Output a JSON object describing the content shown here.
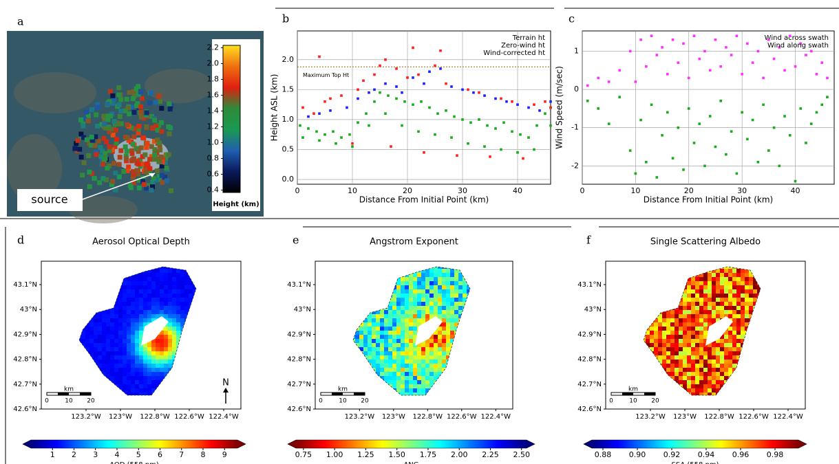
{
  "chart_data": [
    {
      "type": "image",
      "panel_label": "a",
      "annotation": "source",
      "colorbar": {
        "label": "Height (km)",
        "lim": [
          0.37,
          2.23
        ],
        "ticks": [
          0.4,
          0.6,
          0.8,
          {
            "value": 1,
            "label": "1.0"
          },
          1.2,
          1.4,
          1.6,
          1.8,
          {
            "value": 2,
            "label": "2.0"
          },
          2.2
        ],
        "colors": [
          "#000000",
          "#0a1a5c",
          "#1f5fb0",
          "#1a9a50",
          "#2e8b3a",
          "#e02010",
          "#f07010",
          "#ffe020"
        ]
      }
    },
    {
      "type": "scatter",
      "panel_label": "b",
      "xlabel": "Distance From Initial Point (km)",
      "ylabel": "Height ASL (km)",
      "xlim": [
        0,
        46
      ],
      "ylim": [
        -0.08,
        2.48
      ],
      "xticks": [
        0,
        10,
        20,
        30,
        40
      ],
      "yticks": [
        {
          "value": 0,
          "label": "0.0"
        },
        0.5,
        {
          "value": 1,
          "label": "1.0"
        },
        1.5,
        {
          "value": 2,
          "label": "2.0"
        }
      ],
      "grid": true,
      "legend": "upper right",
      "reference_lines": [
        {
          "value": 1.88,
          "label": "Maximum Top Ht",
          "color": "#a06a10"
        }
      ],
      "series": [
        {
          "name": "Terrain ht",
          "color": "#1aaa1a",
          "x": [
            0.5,
            2,
            3.5,
            5,
            6.5,
            8,
            9.5,
            11,
            12.5,
            14,
            15,
            16.5,
            18,
            19.5,
            21,
            22.5,
            24,
            25.5,
            27,
            28.5,
            30,
            31.5,
            33,
            34.5,
            36,
            37.5,
            39,
            40.5,
            42,
            43.5,
            45,
            46,
            1,
            4,
            7,
            10,
            13,
            16,
            19,
            22,
            25,
            28,
            31,
            34,
            37,
            40,
            43,
            46
          ],
          "values": [
            0.9,
            0.85,
            0.8,
            0.75,
            0.8,
            0.7,
            0.75,
            0.95,
            1.1,
            1.3,
            1.45,
            1.4,
            1.35,
            1.3,
            1.25,
            1.3,
            1.2,
            1.1,
            1.15,
            1.05,
            1.0,
            0.95,
            1.0,
            0.9,
            0.85,
            0.95,
            0.8,
            0.75,
            0.7,
            0.9,
            1.1,
            1.2,
            0.7,
            0.65,
            0.6,
            0.55,
            0.9,
            1.1,
            0.9,
            0.8,
            0.75,
            0.7,
            0.6,
            0.55,
            0.5,
            0.45,
            0.5,
            0.9
          ]
        },
        {
          "name": "Zero-wind ht",
          "color": "#ff2020",
          "x": [
            1,
            3,
            4,
            5,
            6,
            8,
            10,
            11,
            12,
            14,
            15,
            16,
            17,
            18,
            20,
            21,
            22,
            23,
            25,
            26,
            27,
            29,
            31,
            33,
            35,
            37,
            39,
            41,
            43,
            45,
            46
          ],
          "values": [
            1.2,
            1.1,
            2.05,
            1.3,
            1.35,
            1.4,
            0.6,
            1.5,
            1.65,
            1.75,
            1.9,
            2.0,
            0.55,
            1.85,
            1.7,
            2.2,
            1.75,
            0.45,
            1.9,
            2.15,
            1.6,
            0.4,
            1.5,
            1.45,
            0.38,
            1.35,
            1.3,
            0.35,
            1.25,
            1.3,
            1.2
          ]
        },
        {
          "name": "Wind-corrected ht",
          "color": "#2020ff",
          "x": [
            2,
            4,
            6,
            9,
            11,
            13,
            14,
            16,
            18,
            19,
            21,
            23,
            24,
            26,
            28,
            30,
            32,
            34,
            36,
            38,
            40,
            42,
            44,
            46
          ],
          "values": [
            1.05,
            1.1,
            1.15,
            1.2,
            1.35,
            1.45,
            1.5,
            1.6,
            1.55,
            1.45,
            1.7,
            1.6,
            1.8,
            1.85,
            1.55,
            1.5,
            1.45,
            1.4,
            1.35,
            1.3,
            1.25,
            1.2,
            1.15,
            1.3
          ]
        }
      ]
    },
    {
      "type": "scatter",
      "panel_label": "c",
      "xlabel": "Distance From Initial Point (km)",
      "ylabel": "Wind Speed (m/sec)",
      "xlim": [
        0,
        47.3
      ],
      "ylim": [
        -2.48,
        1.53
      ],
      "xticks": [
        0,
        10,
        20,
        30,
        40
      ],
      "yticks": [
        -2,
        -1,
        0,
        1
      ],
      "grid": true,
      "legend": "upper right",
      "series": [
        {
          "name": "Wind across swath",
          "color": "#1aaa1a",
          "x": [
            1,
            3,
            5,
            7,
            9,
            10,
            11,
            12,
            13,
            14,
            15,
            16,
            17,
            18,
            19,
            20,
            21,
            22,
            23,
            24,
            25,
            26,
            27,
            28,
            29,
            30,
            31,
            32,
            33,
            34,
            35,
            36,
            37,
            38,
            39,
            40,
            41,
            42,
            43,
            44,
            45,
            46
          ],
          "values": [
            -0.3,
            -0.5,
            -0.9,
            -0.2,
            -1.6,
            -2.2,
            -0.8,
            -1.9,
            -0.4,
            -2.3,
            -1.2,
            -0.6,
            -1.8,
            -1.0,
            -2.1,
            -0.5,
            -1.4,
            -0.9,
            -2.0,
            -0.7,
            -1.5,
            -0.3,
            -1.7,
            -1.1,
            -2.2,
            -0.6,
            -1.3,
            -0.8,
            -1.9,
            -0.4,
            -1.6,
            -1.0,
            -2.0,
            -0.7,
            -1.2,
            -2.4,
            -0.5,
            -1.4,
            -0.9,
            -0.6,
            -0.4,
            -0.2
          ]
        },
        {
          "name": "Wind along swath",
          "color": "#ff30ff",
          "x": [
            1,
            3,
            5,
            7,
            9,
            10,
            11,
            12,
            13,
            14,
            15,
            16,
            17,
            18,
            19,
            20,
            21,
            22,
            23,
            24,
            25,
            26,
            27,
            28,
            29,
            30,
            31,
            32,
            33,
            34,
            35,
            36,
            37,
            38,
            39,
            40,
            41,
            42,
            43,
            44,
            45,
            46
          ],
          "values": [
            0.1,
            0.3,
            0.2,
            0.5,
            1.0,
            0.2,
            1.3,
            0.6,
            1.4,
            0.9,
            1.1,
            0.4,
            1.3,
            0.7,
            1.2,
            0.3,
            1.4,
            0.8,
            1.0,
            0.5,
            1.3,
            0.6,
            1.1,
            0.9,
            1.4,
            0.4,
            1.2,
            0.7,
            1.0,
            0.3,
            1.3,
            0.8,
            1.1,
            0.5,
            1.4,
            0.6,
            1.2,
            0.9,
            1.0,
            0.4,
            0.7,
            0.3
          ]
        }
      ]
    },
    {
      "type": "map",
      "panel_label": "d",
      "title": "Aerosol Optical Depth",
      "xlim": [
        -123.46,
        -122.3
      ],
      "ylim": [
        42.6,
        43.194
      ],
      "xticks": [
        {
          "value": -123.2,
          "label": "123.2°W"
        },
        {
          "value": -123,
          "label": "123°W"
        },
        {
          "value": -122.8,
          "label": "122.8°W"
        },
        {
          "value": -122.6,
          "label": "122.6°W"
        },
        {
          "value": -122.4,
          "label": "122.4°W"
        }
      ],
      "yticks": [
        {
          "value": 42.6,
          "label": "42.6°N"
        },
        {
          "value": 42.7,
          "label": "42.7°N"
        },
        {
          "value": 42.8,
          "label": "42.8°N"
        },
        {
          "value": 42.9,
          "label": "42.9°N"
        },
        {
          "value": 43,
          "label": "43°N"
        },
        {
          "value": 43.1,
          "label": "43.1°N"
        }
      ],
      "scale_bar": {
        "unit": "km",
        "ticks": [
          0,
          10,
          20
        ]
      },
      "north_arrow": "N",
      "colorbar": {
        "label": "AOD (558 nm)",
        "lim": [
          0,
          9.6
        ],
        "ticks": [
          1,
          2,
          3,
          4,
          5,
          6,
          7,
          8,
          9
        ],
        "colors": [
          "#00007f",
          "#0000ff",
          "#007fff",
          "#00ffff",
          "#7fff7f",
          "#ffff00",
          "#ff7f00",
          "#ff0000",
          "#7f0000"
        ]
      }
    },
    {
      "type": "map",
      "panel_label": "e",
      "title": "Angstrom Exponent",
      "xlim": [
        -123.46,
        -122.3
      ],
      "ylim": [
        42.6,
        43.194
      ],
      "xticks": [
        {
          "value": -123.2,
          "label": "123.2°W"
        },
        {
          "value": -123,
          "label": "123°W"
        },
        {
          "value": -122.8,
          "label": "122.8°W"
        },
        {
          "value": -122.6,
          "label": "122.6°W"
        },
        {
          "value": -122.4,
          "label": "122.4°W"
        }
      ],
      "yticks": [
        {
          "value": 42.6,
          "label": "42.6°N"
        },
        {
          "value": 42.7,
          "label": "42.7°N"
        },
        {
          "value": 42.8,
          "label": "42.8°N"
        },
        {
          "value": 42.9,
          "label": "42.9°N"
        },
        {
          "value": 43,
          "label": "43°N"
        },
        {
          "value": 43.1,
          "label": "43.1°N"
        }
      ],
      "scale_bar": {
        "unit": "km",
        "ticks": [
          0,
          10,
          20
        ]
      },
      "colorbar": {
        "label": "ANG",
        "lim": [
          0.69,
          2.54
        ],
        "ticks": [
          0.75,
          {
            "value": 1,
            "label": "1.00"
          },
          1.25,
          {
            "value": 1.5,
            "label": "1.50"
          },
          1.75,
          {
            "value": 2,
            "label": "2.00"
          },
          2.25,
          {
            "value": 2.5,
            "label": "2.50"
          }
        ],
        "colors": [
          "#7f0000",
          "#ff0000",
          "#ff7f00",
          "#ffff00",
          "#7fff7f",
          "#00ffff",
          "#007fff",
          "#0000ff",
          "#00007f"
        ]
      }
    },
    {
      "type": "map",
      "panel_label": "f",
      "title": "Single Scattering Albedo",
      "xlim": [
        -123.46,
        -122.3
      ],
      "ylim": [
        42.6,
        43.194
      ],
      "xticks": [
        {
          "value": -123.2,
          "label": "123.2°W"
        },
        {
          "value": -123,
          "label": "123°W"
        },
        {
          "value": -122.8,
          "label": "122.8°W"
        },
        {
          "value": -122.6,
          "label": "122.6°W"
        },
        {
          "value": -122.4,
          "label": "122.4°W"
        }
      ],
      "yticks": [
        {
          "value": 42.6,
          "label": "42.6°N"
        },
        {
          "value": 42.7,
          "label": "42.7°N"
        },
        {
          "value": 42.8,
          "label": "42.8°N"
        },
        {
          "value": 42.9,
          "label": "42.9°N"
        },
        {
          "value": 43,
          "label": "43°N"
        },
        {
          "value": 43.1,
          "label": "43.1°N"
        }
      ],
      "scale_bar": {
        "unit": "km",
        "ticks": [
          0,
          10,
          20
        ]
      },
      "colorbar": {
        "label": "SSA (558 nm)",
        "lim": [
          0.8736,
          0.9936
        ],
        "ticks": [
          0.88,
          {
            "value": 0.9,
            "label": "0.90"
          },
          0.92,
          0.94,
          0.96,
          0.98
        ],
        "colors": [
          "#00007f",
          "#0000ff",
          "#007fff",
          "#00ffff",
          "#7fff7f",
          "#ffff00",
          "#ff7f00",
          "#ff0000",
          "#7f0000"
        ]
      }
    }
  ]
}
